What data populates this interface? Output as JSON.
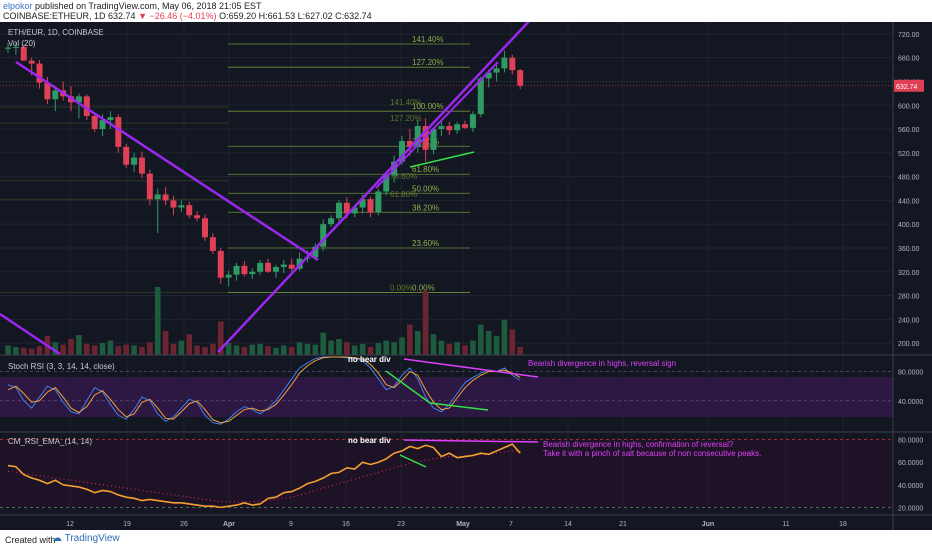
{
  "header": {
    "author": "elpokor",
    "published": "published on TradingView.com, May 06, 2018 21:05 EST",
    "symbol_line": "COINBASE:ETHEUR, 1D 632.74",
    "change": "▼ −26.46 (−4.01%)",
    "ohlc": "O:659.20 H:661.53 L:627.02 C:632.74"
  },
  "footer": {
    "created": "Created with",
    "brand": "TradingView"
  },
  "colors": {
    "up": "#2f9a63",
    "down": "#e04055",
    "background": "#131722",
    "purple": "#9c27f0",
    "magenta": "#e040fb",
    "fib": "#6f8f3a",
    "rsi_line": "#f4a030"
  },
  "chart_data": [
    {
      "type": "candlestick",
      "title": "ETH/EUR, 1D, COINBASE",
      "volume_label": "Vol (20)",
      "ylim": [
        180,
        740
      ],
      "y_ticks": [
        "720.00",
        "680.00",
        "640.00",
        "600.00",
        "560.00",
        "520.00",
        "480.00",
        "440.00",
        "400.00",
        "360.00",
        "320.00",
        "280.00",
        "240.00",
        "200.00"
      ],
      "last_price": "632.74",
      "x_ticks": [
        "12",
        "19",
        "26",
        "Apr",
        "9",
        "16",
        "23",
        "May",
        "7",
        "14",
        "21",
        "Jun",
        "11",
        "18"
      ],
      "candles": [
        [
          695,
          705,
          688,
          697
        ],
        [
          697,
          705,
          685,
          698
        ],
        [
          698,
          702,
          675,
          675
        ],
        [
          675,
          680,
          650,
          670
        ],
        [
          670,
          676,
          628,
          638
        ],
        [
          638,
          648,
          602,
          610
        ],
        [
          610,
          632,
          590,
          625
        ],
        [
          625,
          640,
          608,
          615
        ],
        [
          615,
          632,
          590,
          605
        ],
        [
          605,
          620,
          578,
          615
        ],
        [
          615,
          618,
          575,
          582
        ],
        [
          582,
          586,
          555,
          560
        ],
        [
          560,
          585,
          548,
          575
        ],
        [
          575,
          590,
          560,
          580
        ],
        [
          580,
          585,
          520,
          530
        ],
        [
          530,
          535,
          495,
          500
        ],
        [
          500,
          520,
          488,
          512
        ],
        [
          512,
          522,
          478,
          485
        ],
        [
          485,
          492,
          432,
          442
        ],
        [
          442,
          460,
          385,
          450
        ],
        [
          450,
          462,
          432,
          440
        ],
        [
          440,
          448,
          415,
          428
        ],
        [
          428,
          440,
          420,
          432
        ],
        [
          432,
          438,
          410,
          415
        ],
        [
          415,
          422,
          405,
          410
        ],
        [
          410,
          416,
          372,
          378
        ],
        [
          378,
          385,
          350,
          355
        ],
        [
          355,
          360,
          300,
          310
        ],
        [
          310,
          322,
          295,
          315
        ],
        [
          315,
          335,
          305,
          330
        ],
        [
          330,
          338,
          312,
          316
        ],
        [
          316,
          326,
          308,
          320
        ],
        [
          320,
          340,
          315,
          335
        ],
        [
          335,
          342,
          318,
          320
        ],
        [
          320,
          332,
          310,
          328
        ],
        [
          328,
          340,
          318,
          332
        ],
        [
          332,
          342,
          320,
          325
        ],
        [
          325,
          352,
          322,
          342
        ],
        [
          342,
          356,
          336,
          344
        ],
        [
          344,
          368,
          340,
          362
        ],
        [
          362,
          408,
          355,
          400
        ],
        [
          400,
          415,
          395,
          410
        ],
        [
          410,
          440,
          405,
          436
        ],
        [
          436,
          445,
          410,
          418
        ],
        [
          418,
          432,
          412,
          428
        ],
        [
          428,
          450,
          418,
          442
        ],
        [
          442,
          446,
          412,
          420
        ],
        [
          420,
          460,
          415,
          455
        ],
        [
          455,
          488,
          448,
          482
        ],
        [
          482,
          515,
          470,
          505
        ],
        [
          505,
          548,
          500,
          540
        ],
        [
          540,
          560,
          515,
          530
        ],
        [
          530,
          575,
          520,
          565
        ],
        [
          565,
          578,
          505,
          525
        ],
        [
          525,
          562,
          518,
          560
        ],
        [
          560,
          575,
          548,
          565
        ],
        [
          565,
          572,
          550,
          558
        ],
        [
          558,
          572,
          552,
          568
        ],
        [
          568,
          574,
          560,
          562
        ],
        [
          562,
          590,
          555,
          585
        ],
        [
          585,
          648,
          580,
          645
        ],
        [
          645,
          660,
          630,
          655
        ],
        [
          655,
          668,
          640,
          662
        ],
        [
          662,
          692,
          655,
          680
        ],
        [
          680,
          685,
          652,
          659
        ],
        [
          659,
          661,
          627,
          633
        ]
      ],
      "volume": [
        0.12,
        0.1,
        0.09,
        0.08,
        0.11,
        0.24,
        0.16,
        0.13,
        0.2,
        0.25,
        0.14,
        0.12,
        0.15,
        0.18,
        0.11,
        0.13,
        0.12,
        0.1,
        0.16,
        0.85,
        0.3,
        0.14,
        0.18,
        0.26,
        0.12,
        0.1,
        0.14,
        0.42,
        0.15,
        0.12,
        0.1,
        0.13,
        0.14,
        0.11,
        0.09,
        0.12,
        0.1,
        0.16,
        0.14,
        0.13,
        0.28,
        0.18,
        0.2,
        0.16,
        0.12,
        0.14,
        0.1,
        0.15,
        0.18,
        0.16,
        0.22,
        0.38,
        0.3,
        0.8,
        0.26,
        0.18,
        0.14,
        0.16,
        0.12,
        0.18,
        0.38,
        0.3,
        0.24,
        0.44,
        0.32,
        0.1
      ],
      "fib_levels": [
        {
          "label": "141.40%",
          "price": 703
        },
        {
          "label": "127.20%",
          "price": 664
        },
        {
          "label": "100.00%",
          "price": 590
        },
        {
          "label": "78.60%",
          "price": 531
        },
        {
          "label": "61.80%",
          "price": 484
        },
        {
          "label": "50.00%",
          "price": 452
        },
        {
          "label": "38.20%",
          "price": 420
        },
        {
          "label": "23.60%",
          "price": 360
        },
        {
          "label": "0.00%",
          "price": 285
        }
      ],
      "fib_ghost_labels": [
        {
          "label": "141.40%",
          "price": 597
        },
        {
          "label": "127.20%",
          "price": 570
        },
        {
          "label": "78.60%",
          "price": 473
        },
        {
          "label": "61.80%",
          "price": 442
        },
        {
          "label": "0.00%",
          "price": 285
        }
      ]
    },
    {
      "type": "line",
      "title": "Stoch RSI (3, 3, 14, 14, close)",
      "ylim": [
        0,
        100
      ],
      "y_ticks": [
        "80.0000",
        "40.0000"
      ],
      "annotations": [
        "no bear div",
        "Bearish divergence in highs, reversal sign"
      ],
      "series": [
        {
          "values": [
            62,
            58,
            40,
            30,
            45,
            60,
            55,
            38,
            25,
            22,
            40,
            58,
            52,
            35,
            20,
            15,
            28,
            45,
            40,
            22,
            12,
            18,
            30,
            42,
            38,
            20,
            10,
            8,
            15,
            25,
            32,
            28,
            22,
            30,
            40,
            55,
            70,
            85,
            92,
            98,
            100,
            100,
            100,
            99,
            98,
            95,
            85,
            70,
            55,
            60,
            75,
            85,
            70,
            45,
            30,
            25,
            35,
            50,
            65,
            72,
            78,
            82,
            80,
            85,
            75,
            68
          ]
        },
        {
          "values": [
            55,
            60,
            50,
            38,
            40,
            52,
            58,
            45,
            30,
            24,
            32,
            48,
            54,
            42,
            28,
            18,
            22,
            38,
            42,
            30,
            16,
            15,
            25,
            36,
            40,
            28,
            14,
            10,
            12,
            20,
            28,
            30,
            26,
            28,
            35,
            48,
            62,
            78,
            88,
            95,
            99,
            100,
            100,
            100,
            99,
            97,
            90,
            78,
            62,
            58,
            68,
            80,
            75,
            55,
            38,
            28,
            30,
            44,
            58,
            68,
            75,
            80,
            80,
            82,
            78,
            72
          ]
        }
      ]
    },
    {
      "type": "line",
      "title": "CM_RSI_EMA_(14, 14)",
      "ylim": [
        15,
        85
      ],
      "y_ticks": [
        "80.0000",
        "60.0000",
        "40.0000",
        "20.0000"
      ],
      "annotations": [
        "no bear div",
        "Bearish divergence in highs, confirmation of reversal?",
        "Take it with a pinch of salt because of non consecutive peaks."
      ],
      "series": [
        {
          "name": "RSI",
          "values": [
            57,
            56,
            49,
            46,
            44,
            41,
            44,
            40,
            39,
            38,
            36,
            33,
            35,
            34,
            31,
            29,
            28,
            26,
            27,
            26,
            25,
            24,
            24,
            23,
            22,
            21,
            21,
            20,
            21,
            22,
            24,
            22,
            23,
            28,
            29,
            33,
            34,
            37,
            41,
            43,
            46,
            50,
            51,
            55,
            54,
            60,
            58,
            60,
            63,
            68,
            70,
            74,
            72,
            75,
            73,
            65,
            68,
            64,
            65,
            66,
            68,
            67,
            70,
            73,
            76,
            68
          ]
        },
        {
          "name": "EMA",
          "values": [
            52,
            51,
            50,
            49,
            48,
            47,
            46,
            45,
            44,
            43,
            42,
            41,
            40,
            39,
            38,
            37,
            36,
            35,
            34,
            33,
            32,
            31,
            30,
            29,
            28,
            27,
            26,
            25,
            25,
            25,
            25,
            25,
            25,
            26,
            27,
            28,
            29,
            31,
            33,
            35,
            37,
            39,
            41,
            43,
            45,
            47,
            49,
            51,
            53,
            55,
            57,
            59,
            60,
            62,
            63,
            64,
            65,
            65,
            66,
            66,
            67,
            67,
            68,
            69,
            70,
            70
          ]
        }
      ]
    }
  ]
}
